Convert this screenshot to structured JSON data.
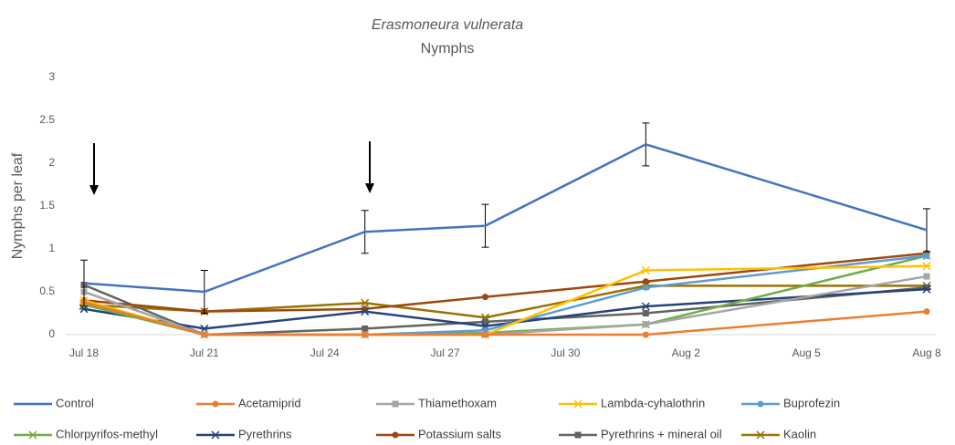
{
  "chart_data": {
    "type": "line",
    "title": "Erasmoneura vulnerata",
    "subtitle": "Nymphs",
    "y_label": "Nymphs per leaf",
    "x": [
      "Jul 18",
      "Jul 21",
      "Jul 25",
      "Jul 28",
      "Aug 1",
      "Aug 8"
    ],
    "xlim": [
      "Jul 18",
      "Aug 8"
    ],
    "xticks": [
      "Jul 18",
      "Jul 21",
      "Jul 24",
      "Jul 27",
      "Jul 30",
      "Aug 2",
      "Aug 5",
      "Aug 8"
    ],
    "ylim": [
      0,
      3
    ],
    "yticks": [
      0,
      0.5,
      1,
      1.5,
      2,
      2.5,
      3
    ],
    "grid": false,
    "legend": "bottom",
    "series": [
      {
        "name": "Control",
        "color": "#4472c4",
        "marker": "none",
        "values": [
          0.6,
          0.5,
          1.2,
          1.27,
          2.22,
          1.22
        ],
        "errors": [
          0.27,
          0.25,
          0.25,
          0.25,
          0.25,
          0.25
        ]
      },
      {
        "name": "Acetamiprid",
        "color": "#ed7d31",
        "marker": "circle",
        "values": [
          0.38,
          0,
          0,
          0,
          0,
          0.27
        ]
      },
      {
        "name": "Thiamethoxam",
        "color": "#a5a5a5",
        "marker": "square",
        "values": [
          0.5,
          0,
          0,
          0,
          0.12,
          0.68
        ]
      },
      {
        "name": "Lambda-cyhalothrin",
        "color": "#ffc000",
        "marker": "star",
        "values": [
          0.4,
          0,
          0,
          0,
          0.75,
          0.8
        ]
      },
      {
        "name": "Buprofezin",
        "color": "#5b9bd5",
        "marker": "circle",
        "values": [
          0.5,
          0,
          0,
          0.05,
          0.55,
          0.92
        ]
      },
      {
        "name": "Chlorpyrifos-methyl",
        "color": "#70ad47",
        "marker": "x",
        "values": [
          0.35,
          0,
          0,
          0.02,
          0.12,
          0.92
        ]
      },
      {
        "name": "Pyrethrins",
        "color": "#264478",
        "marker": "star",
        "values": [
          0.3,
          0.07,
          0.27,
          0.1,
          0.33,
          0.53
        ]
      },
      {
        "name": "Potassium salts",
        "color": "#9e480e",
        "marker": "circle",
        "values": [
          0.4,
          0.27,
          0.3,
          0.44,
          0.62,
          0.95
        ]
      },
      {
        "name": "Pyrethrins + mineral oil",
        "color": "#636363",
        "marker": "square",
        "values": [
          0.58,
          0,
          0.07,
          0.15,
          0.25,
          0.55
        ]
      },
      {
        "name": "Kaolin",
        "color": "#997300",
        "marker": "star",
        "values": [
          0.35,
          0.27,
          0.37,
          0.2,
          0.57,
          0.57
        ]
      }
    ]
  }
}
